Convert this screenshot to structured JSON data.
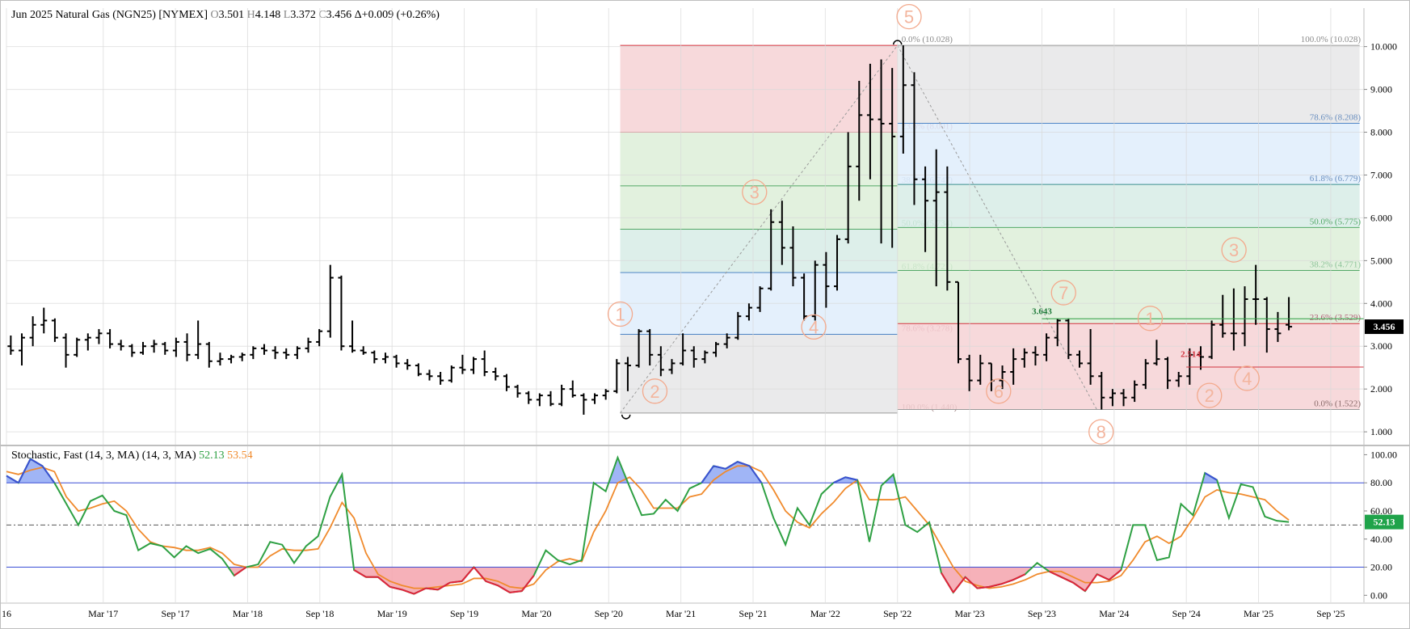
{
  "header": {
    "title": "Jun 2025 Natural Gas (NGN25) [NYMEX]",
    "open_label": "O",
    "open": "3.501",
    "high_label": "H",
    "high": "4.148",
    "low_label": "L",
    "low": "3.372",
    "close_label": "C",
    "close": "3.456",
    "change": "Δ+0.009 (+0.26%)"
  },
  "stochastic": {
    "title": "Stochastic, Fast (14, 3, MA) (14, 3, MA)",
    "k_value": "52.13",
    "d_value": "53.54",
    "last_badge": "52.13",
    "colors": {
      "k": "#2ea043",
      "d": "#f08a2c",
      "overbought": "#8fa8f5",
      "oversold": "#f5a3ad"
    }
  },
  "price_badge": "3.456",
  "chart_data": [
    {
      "type": "ohlc",
      "title": "Jun 2025 Natural Gas (NGN25) [NYMEX]",
      "interval": "monthly",
      "ylim": [
        0.7,
        10.9
      ],
      "y_ticks": [
        "10.000",
        "9.000",
        "8.000",
        "7.000",
        "6.000",
        "5.000",
        "4.000",
        "3.000",
        "2.000",
        "1.000"
      ],
      "x_range": [
        2016.5,
        2025.9
      ],
      "x_ticks": [
        {
          "label": "16",
          "x": 2016.5
        },
        {
          "label": "Mar '17",
          "x": 2017.17
        },
        {
          "label": "Sep '17",
          "x": 2017.67
        },
        {
          "label": "Mar '18",
          "x": 2018.17
        },
        {
          "label": "Sep '18",
          "x": 2018.67
        },
        {
          "label": "Mar '19",
          "x": 2019.17
        },
        {
          "label": "Sep '19",
          "x": 2019.67
        },
        {
          "label": "Mar '20",
          "x": 2020.17
        },
        {
          "label": "Sep '20",
          "x": 2020.67
        },
        {
          "label": "Mar '21",
          "x": 2021.17
        },
        {
          "label": "Sep '21",
          "x": 2021.67
        },
        {
          "label": "Mar '22",
          "x": 2022.17
        },
        {
          "label": "Sep '22",
          "x": 2022.67
        },
        {
          "label": "Mar '23",
          "x": 2023.17
        },
        {
          "label": "Sep '23",
          "x": 2023.67
        },
        {
          "label": "Mar '24",
          "x": 2024.17
        },
        {
          "label": "Sep '24",
          "x": 2024.67
        },
        {
          "label": "Mar '25",
          "x": 2025.17
        },
        {
          "label": "Sep '25",
          "x": 2025.67
        }
      ],
      "bars": [
        [
          3.0,
          3.25,
          2.8,
          2.9
        ],
        [
          2.9,
          3.3,
          2.55,
          3.2
        ],
        [
          3.2,
          3.7,
          3.0,
          3.5
        ],
        [
          3.5,
          3.9,
          3.3,
          3.6
        ],
        [
          3.6,
          3.65,
          3.1,
          3.2
        ],
        [
          3.2,
          3.3,
          2.5,
          2.8
        ],
        [
          2.8,
          3.2,
          2.75,
          3.15
        ],
        [
          3.15,
          3.3,
          2.9,
          3.2
        ],
        [
          3.2,
          3.4,
          3.05,
          3.3
        ],
        [
          3.3,
          3.4,
          2.95,
          3.05
        ],
        [
          3.05,
          3.15,
          2.9,
          3.0
        ],
        [
          3.0,
          3.05,
          2.75,
          2.85
        ],
        [
          2.85,
          3.1,
          2.8,
          3.0
        ],
        [
          3.0,
          3.15,
          2.85,
          3.05
        ],
        [
          3.05,
          3.1,
          2.8,
          2.9
        ],
        [
          2.9,
          3.2,
          2.75,
          3.1
        ],
        [
          3.1,
          3.3,
          2.65,
          2.8
        ],
        [
          2.8,
          3.6,
          2.7,
          3.05
        ],
        [
          3.05,
          3.1,
          2.5,
          2.65
        ],
        [
          2.65,
          2.85,
          2.55,
          2.7
        ],
        [
          2.7,
          2.8,
          2.6,
          2.75
        ],
        [
          2.75,
          2.85,
          2.65,
          2.8
        ],
        [
          2.8,
          3.0,
          2.7,
          2.95
        ],
        [
          2.95,
          3.05,
          2.8,
          2.9
        ],
        [
          2.9,
          3.0,
          2.7,
          2.85
        ],
        [
          2.85,
          2.95,
          2.7,
          2.8
        ],
        [
          2.8,
          3.0,
          2.7,
          2.95
        ],
        [
          2.95,
          3.2,
          2.85,
          3.1
        ],
        [
          3.1,
          3.4,
          3.0,
          3.35
        ],
        [
          3.35,
          4.9,
          3.2,
          4.6
        ],
        [
          4.6,
          4.65,
          2.9,
          3.0
        ],
        [
          3.0,
          3.6,
          2.85,
          2.9
        ],
        [
          2.9,
          3.0,
          2.8,
          2.85
        ],
        [
          2.85,
          2.9,
          2.6,
          2.7
        ],
        [
          2.7,
          2.85,
          2.6,
          2.75
        ],
        [
          2.75,
          2.8,
          2.5,
          2.6
        ],
        [
          2.6,
          2.7,
          2.45,
          2.55
        ],
        [
          2.55,
          2.6,
          2.3,
          2.35
        ],
        [
          2.35,
          2.45,
          2.2,
          2.3
        ],
        [
          2.3,
          2.4,
          2.1,
          2.2
        ],
        [
          2.2,
          2.55,
          2.15,
          2.5
        ],
        [
          2.5,
          2.8,
          2.35,
          2.45
        ],
        [
          2.45,
          2.75,
          2.35,
          2.7
        ],
        [
          2.7,
          2.9,
          2.3,
          2.4
        ],
        [
          2.4,
          2.5,
          2.2,
          2.3
        ],
        [
          2.3,
          2.35,
          1.95,
          2.05
        ],
        [
          2.05,
          2.1,
          1.8,
          1.9
        ],
        [
          1.9,
          1.95,
          1.65,
          1.75
        ],
        [
          1.75,
          1.9,
          1.6,
          1.85
        ],
        [
          1.85,
          1.95,
          1.6,
          1.65
        ],
        [
          1.65,
          2.1,
          1.6,
          2.0
        ],
        [
          2.0,
          2.2,
          1.8,
          1.85
        ],
        [
          1.85,
          1.9,
          1.4,
          1.75
        ],
        [
          1.75,
          1.9,
          1.65,
          1.85
        ],
        [
          1.85,
          2.0,
          1.75,
          1.95
        ],
        [
          1.95,
          2.7,
          1.9,
          2.6
        ],
        [
          2.6,
          2.75,
          1.95,
          2.55
        ],
        [
          2.55,
          3.4,
          2.5,
          3.35
        ],
        [
          3.35,
          3.4,
          2.55,
          2.8
        ],
        [
          2.8,
          3.0,
          2.3,
          2.45
        ],
        [
          2.45,
          2.7,
          2.35,
          2.6
        ],
        [
          2.6,
          3.3,
          2.55,
          2.9
        ],
        [
          2.9,
          3.0,
          2.5,
          2.7
        ],
        [
          2.7,
          2.9,
          2.6,
          2.85
        ],
        [
          2.85,
          3.1,
          2.75,
          3.05
        ],
        [
          3.05,
          3.3,
          2.95,
          3.2
        ],
        [
          3.2,
          3.8,
          3.15,
          3.7
        ],
        [
          3.7,
          4.0,
          3.6,
          3.9
        ],
        [
          3.9,
          4.4,
          3.8,
          4.35
        ],
        [
          4.35,
          6.2,
          4.3,
          5.9
        ],
        [
          5.9,
          6.4,
          4.9,
          5.3
        ],
        [
          5.3,
          5.8,
          4.4,
          4.6
        ],
        [
          4.6,
          4.7,
          3.6,
          3.7
        ],
        [
          3.7,
          5.0,
          3.6,
          4.9
        ],
        [
          4.9,
          5.2,
          3.9,
          4.4
        ],
        [
          4.4,
          5.6,
          4.3,
          5.5
        ],
        [
          5.5,
          8.0,
          5.4,
          7.2
        ],
        [
          7.2,
          9.2,
          6.4,
          8.4
        ],
        [
          8.4,
          9.6,
          6.9,
          8.3
        ],
        [
          8.3,
          9.7,
          5.4,
          8.2
        ],
        [
          8.2,
          9.5,
          5.3,
          7.9
        ],
        [
          7.9,
          10.028,
          7.5,
          9.1
        ],
        [
          9.1,
          9.4,
          6.3,
          6.9
        ],
        [
          6.9,
          7.2,
          5.2,
          6.4
        ],
        [
          6.4,
          7.6,
          4.4,
          6.6
        ],
        [
          6.6,
          7.2,
          4.3,
          4.5
        ],
        [
          4.5,
          4.5,
          2.6,
          2.7
        ],
        [
          2.7,
          2.8,
          1.95,
          2.2
        ],
        [
          2.2,
          2.8,
          2.1,
          2.6
        ],
        [
          2.6,
          2.6,
          1.95,
          2.2
        ],
        [
          2.2,
          2.55,
          2.0,
          2.4
        ],
        [
          2.4,
          2.95,
          2.1,
          2.7
        ],
        [
          2.7,
          2.95,
          2.5,
          2.85
        ],
        [
          2.85,
          3.0,
          2.55,
          2.8
        ],
        [
          2.8,
          3.3,
          2.65,
          3.2
        ],
        [
          3.2,
          3.643,
          3.0,
          3.6
        ],
        [
          3.6,
          3.65,
          2.7,
          2.8
        ],
        [
          2.8,
          2.9,
          2.5,
          2.6
        ],
        [
          2.6,
          3.4,
          2.1,
          2.3
        ],
        [
          2.3,
          2.4,
          1.522,
          1.8
        ],
        [
          1.8,
          2.0,
          1.6,
          1.9
        ],
        [
          1.9,
          2.0,
          1.6,
          1.8
        ],
        [
          1.8,
          2.2,
          1.7,
          2.1
        ],
        [
          2.1,
          2.7,
          2.0,
          2.6
        ],
        [
          2.6,
          3.15,
          2.55,
          2.7
        ],
        [
          2.7,
          2.75,
          2.0,
          2.2
        ],
        [
          2.2,
          2.4,
          2.05,
          2.3
        ],
        [
          2.3,
          2.95,
          2.1,
          2.8
        ],
        [
          2.8,
          3.0,
          2.45,
          2.75
        ],
        [
          2.75,
          3.6,
          2.7,
          3.5
        ],
        [
          3.5,
          4.2,
          3.2,
          3.3
        ],
        [
          3.3,
          4.35,
          2.9,
          3.3
        ],
        [
          3.3,
          4.4,
          3.0,
          4.1
        ],
        [
          4.1,
          4.9,
          3.5,
          4.1
        ],
        [
          4.1,
          4.15,
          2.85,
          3.4
        ],
        [
          3.4,
          3.8,
          3.1,
          3.3
        ],
        [
          3.501,
          4.148,
          3.372,
          3.456
        ]
      ],
      "current_price": 3.456,
      "swing_labels": [
        {
          "text": "3.643",
          "x": 2023.67,
          "y": 3.75,
          "color": "#1f7a3a"
        },
        {
          "text": "2.514",
          "x": 2024.7,
          "y": 2.75,
          "color": "#d1333f"
        }
      ],
      "fib_retracements": [
        {
          "range": [
            2020.75,
            2022.67
          ],
          "levels": [
            {
              "label": "0.0% (10.028)",
              "value": 10.028
            },
            {
              "label": "23.6% (8.001)",
              "value": 8.001
            },
            {
              "label": "38.2% (6.747)",
              "value": 6.747
            },
            {
              "label": "50.0% (5.734)",
              "value": 5.734
            },
            {
              "label": "61.8% (4.721)",
              "value": 4.721
            },
            {
              "label": "78.6% (3.278)",
              "value": 3.278
            },
            {
              "label": "100.0% (1.440)",
              "value": 1.44
            }
          ]
        },
        {
          "range": [
            2022.67,
            2025.87
          ],
          "levels": [
            {
              "label": "100.0% (10.028)",
              "value": 10.028
            },
            {
              "label": "78.6% (8.208)",
              "value": 8.208
            },
            {
              "label": "61.8% (6.779)",
              "value": 6.779
            },
            {
              "label": "50.0% (5.775)",
              "value": 5.775
            },
            {
              "label": "38.2% (4.771)",
              "value": 4.771
            },
            {
              "label": "23.6% (3.529)",
              "value": 3.529
            },
            {
              "label": "0.0% (1.522)",
              "value": 1.522
            }
          ]
        }
      ],
      "elliott_waves": [
        {
          "text": "1",
          "x": 2020.75,
          "y": 3.75
        },
        {
          "text": "2",
          "x": 2020.99,
          "y": 1.95
        },
        {
          "text": "3",
          "x": 2021.68,
          "y": 6.6
        },
        {
          "text": "4",
          "x": 2022.09,
          "y": 3.45
        },
        {
          "text": "5",
          "x": 2022.75,
          "y": 10.7
        },
        {
          "text": "6",
          "x": 2023.37,
          "y": 1.95
        },
        {
          "text": "7",
          "x": 2023.82,
          "y": 4.25
        },
        {
          "text": "8",
          "x": 2024.08,
          "y": 1.0
        },
        {
          "text": "1",
          "x": 2024.42,
          "y": 3.65
        },
        {
          "text": "2",
          "x": 2024.83,
          "y": 1.85
        },
        {
          "text": "3",
          "x": 2025.0,
          "y": 5.25
        },
        {
          "text": "4",
          "x": 2025.09,
          "y": 2.25
        }
      ]
    },
    {
      "type": "line",
      "title": "Stochastic, Fast (14, 3, MA) (14, 3, MA)",
      "ylim": [
        -5,
        106
      ],
      "y_ticks": [
        "100.00",
        "80.00",
        "60.00",
        "40.00",
        "20.00",
        "0.00"
      ],
      "reference_lines": [
        80,
        50,
        20
      ],
      "series": [
        {
          "name": "52.13",
          "values": [
            85,
            80,
            97,
            92,
            80,
            65,
            50,
            67,
            71,
            60,
            57,
            32,
            37,
            35,
            27,
            35,
            30,
            33,
            26,
            14,
            20,
            22,
            38,
            36,
            23,
            35,
            42,
            70,
            86,
            18,
            13,
            13,
            6,
            4,
            1,
            5,
            4,
            9,
            10,
            20,
            10,
            7,
            2,
            3,
            14,
            32,
            25,
            22,
            25,
            80,
            74,
            98,
            77,
            57,
            58,
            68,
            60,
            76,
            80,
            92,
            90,
            95,
            92,
            80,
            55,
            36,
            62,
            50,
            72,
            80,
            84,
            82,
            38,
            78,
            86,
            50,
            45,
            52,
            16,
            2,
            13,
            5,
            6,
            8,
            11,
            15,
            23,
            17,
            13,
            9,
            3,
            15,
            11,
            18,
            50,
            50,
            25,
            27,
            65,
            57,
            87,
            82,
            55,
            79,
            77,
            56,
            53,
            52.13
          ]
        },
        {
          "name": "53.54",
          "values": [
            88,
            86,
            89,
            91,
            88,
            70,
            60,
            62,
            65,
            67,
            60,
            47,
            38,
            35,
            34,
            32,
            32,
            34,
            30,
            22,
            20,
            20,
            28,
            33,
            32,
            32,
            33,
            48,
            66,
            55,
            30,
            15,
            10,
            7,
            5,
            5,
            6,
            7,
            8,
            12,
            12,
            10,
            6,
            5,
            8,
            18,
            24,
            26,
            24,
            45,
            60,
            80,
            84,
            75,
            62,
            62,
            62,
            70,
            72,
            82,
            88,
            92,
            92,
            88,
            75,
            60,
            52,
            48,
            58,
            66,
            76,
            82,
            68,
            68,
            68,
            70,
            60,
            50,
            35,
            20,
            10,
            7,
            5,
            6,
            8,
            11,
            15,
            17,
            17,
            13,
            9,
            9,
            10,
            14,
            25,
            38,
            42,
            37,
            42,
            55,
            70,
            75,
            73,
            72,
            70,
            68,
            60,
            53.54
          ]
        }
      ]
    }
  ]
}
